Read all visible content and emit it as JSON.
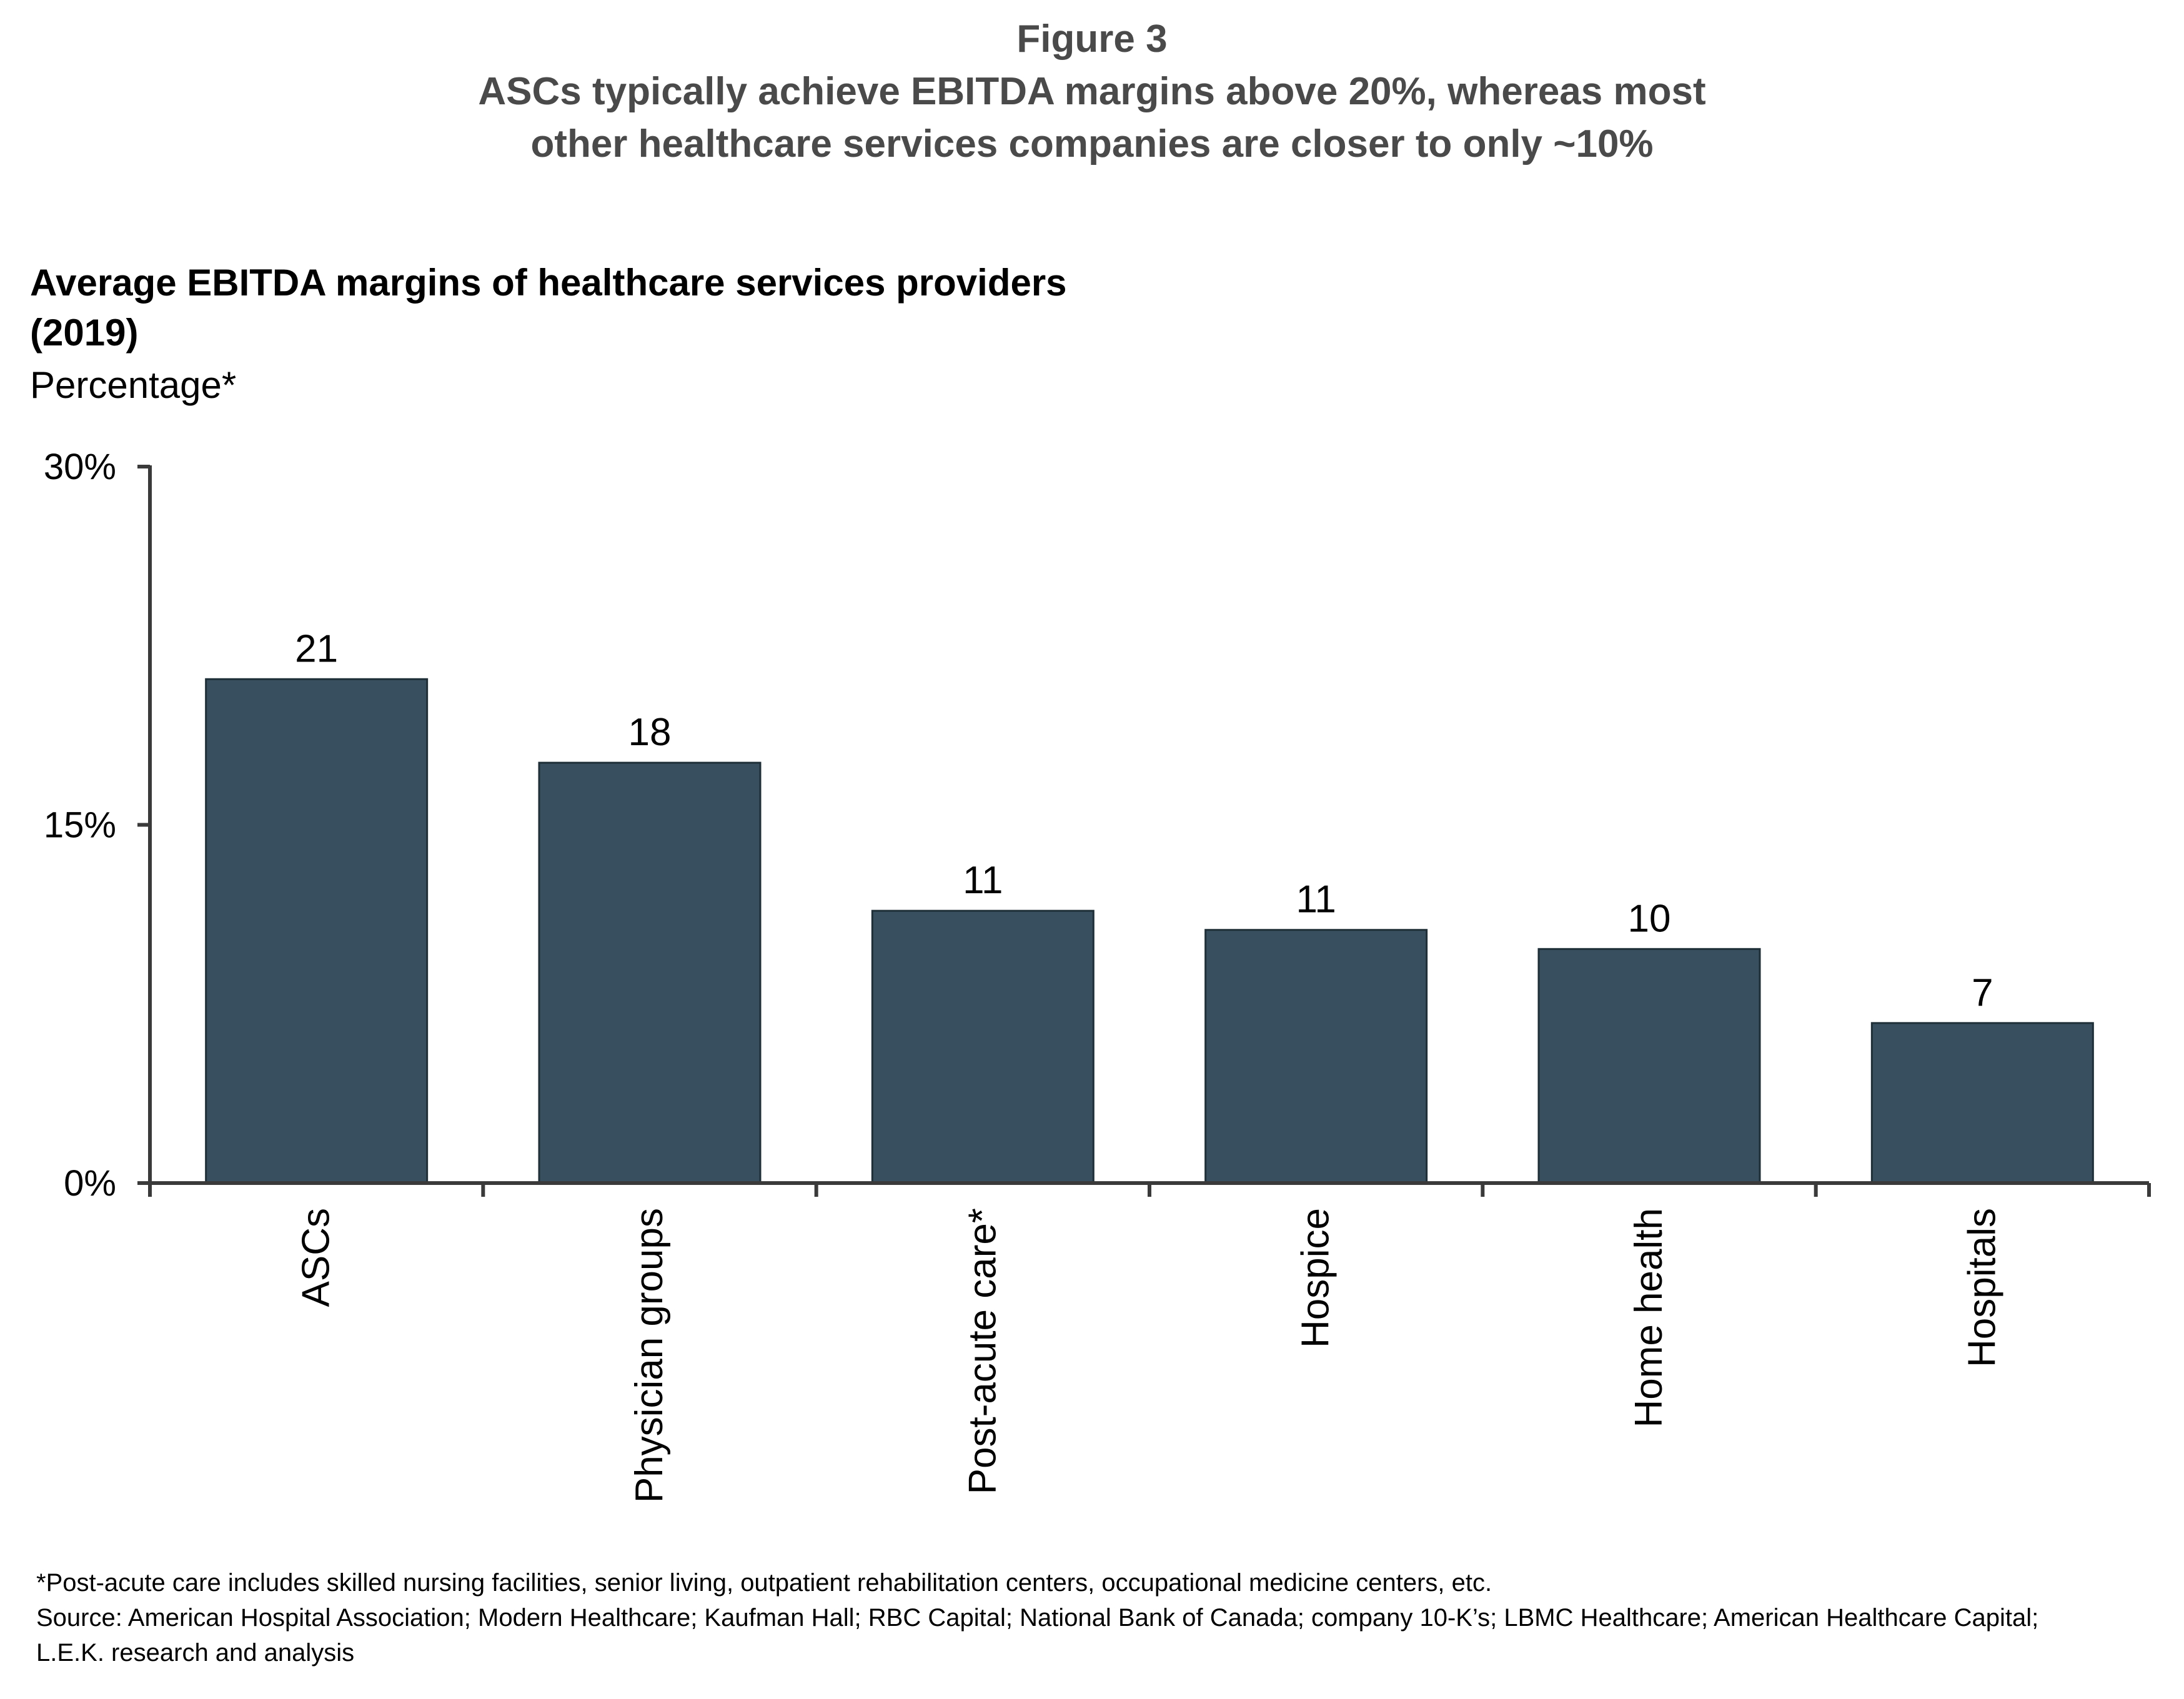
{
  "figure": {
    "label": "Figure 3",
    "title_line1": "ASCs typically achieve EBITDA margins above 20%, whereas most",
    "title_line2": "other healthcare services companies are closer to only ~10%"
  },
  "chart_data": {
    "type": "bar",
    "title_line1": "Average EBITDA margins of healthcare services providers",
    "title_line2": "(2019)",
    "unit_label": "Percentage*",
    "categories": [
      "ASCs",
      "Physician groups",
      "Post-acute care*",
      "Hospice",
      "Home health",
      "Hospitals"
    ],
    "values": [
      21.1,
      17.6,
      11.4,
      10.6,
      9.8,
      6.7
    ],
    "data_labels": [
      "21",
      "18",
      "11",
      "11",
      "10",
      "7"
    ],
    "ylim": [
      0,
      30
    ],
    "yticks": [
      0,
      15,
      30
    ],
    "ytick_labels": [
      "0%",
      "15%",
      "30%"
    ],
    "bar_color": "#374f5e",
    "axis_color": "#3a3a3a",
    "grid": false,
    "legend": "none"
  },
  "footnote": "*Post-acute care includes skilled nursing facilities, senior living, outpatient rehabilitation centers, occupational medicine centers, etc.",
  "source": "Source:  American Hospital Association; Modern Healthcare; Kaufman Hall; RBC Capital; National Bank of Canada; company 10-K’s; LBMC Healthcare; American Healthcare Capital; L.E.K. research and analysis"
}
